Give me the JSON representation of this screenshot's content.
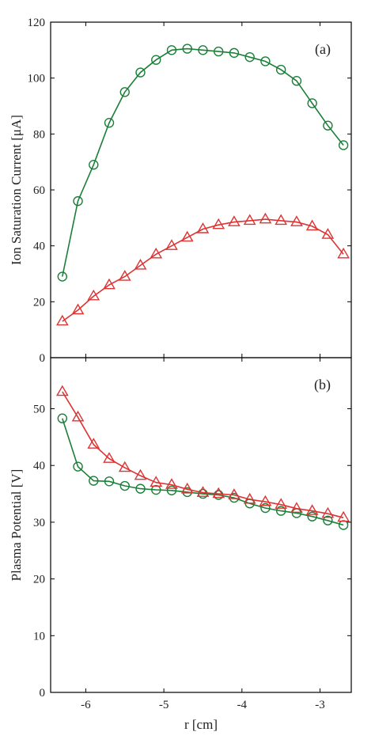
{
  "chart_data": [
    {
      "type": "line",
      "panel_label": "(a)",
      "ylabel": "Ion Saturation Current [μA]",
      "xlabel": "",
      "xlim": [
        -6.45,
        -2.6
      ],
      "ylim": [
        0,
        120
      ],
      "xticks": [
        -6,
        -5,
        -4,
        -3
      ],
      "xtick_labels": [
        "",
        "",
        "",
        ""
      ],
      "yticks": [
        0,
        20,
        40,
        60,
        80,
        100,
        120
      ],
      "ytick_labels": [
        "0",
        "20",
        "40",
        "60",
        "80",
        "100",
        "120"
      ],
      "grid": false,
      "legend": "none",
      "series": [
        {
          "color": "#1a7f37",
          "marker": "circle",
          "x": [
            -6.3,
            -6.1,
            -5.9,
            -5.7,
            -5.5,
            -5.3,
            -5.1,
            -4.9,
            -4.7,
            -4.5,
            -4.3,
            -4.1,
            -3.9,
            -3.7,
            -3.5,
            -3.3,
            -3.1,
            -2.9,
            -2.7
          ],
          "y": [
            29,
            56,
            69,
            84,
            95,
            102,
            106.5,
            110,
            110.5,
            110,
            109.5,
            109,
            107.5,
            106,
            103,
            99,
            91,
            83,
            76
          ]
        },
        {
          "color": "#dd3333",
          "marker": "triangle",
          "x": [
            -6.3,
            -6.1,
            -5.9,
            -5.7,
            -5.5,
            -5.3,
            -5.1,
            -4.9,
            -4.7,
            -4.5,
            -4.3,
            -4.1,
            -3.9,
            -3.7,
            -3.5,
            -3.3,
            -3.1,
            -2.9,
            -2.7
          ],
          "y": [
            13,
            17,
            22,
            26,
            29,
            33,
            37,
            40,
            43,
            46,
            47.5,
            48.5,
            49,
            49.5,
            49,
            48.5,
            47,
            44,
            37
          ]
        }
      ]
    },
    {
      "type": "line",
      "panel_label": "(b)",
      "ylabel": "Plasma Potential [V]",
      "xlabel": "r [cm]",
      "xlim": [
        -6.45,
        -2.6
      ],
      "ylim": [
        0,
        59
      ],
      "xticks": [
        -6,
        -5,
        -4,
        -3
      ],
      "xtick_labels": [
        "-6",
        "-5",
        "-4",
        "-3"
      ],
      "yticks": [
        0,
        10,
        20,
        30,
        40,
        50
      ],
      "ytick_labels": [
        "0",
        "10",
        "20",
        "30",
        "40",
        "50"
      ],
      "grid": false,
      "legend": "none",
      "series": [
        {
          "color": "#1a7f37",
          "marker": "circle",
          "x": [
            -6.3,
            -6.1,
            -5.9,
            -5.7,
            -5.5,
            -5.3,
            -5.1,
            -4.9,
            -4.7,
            -4.5,
            -4.3,
            -4.1,
            -3.9,
            -3.7,
            -3.5,
            -3.3,
            -3.1,
            -2.9,
            -2.7
          ],
          "y": [
            48.3,
            39.8,
            37.3,
            37.2,
            36.4,
            35.9,
            35.7,
            35.6,
            35.3,
            35,
            34.8,
            34.3,
            33.3,
            32.5,
            32,
            31.6,
            31,
            30.3,
            29.5
          ]
        },
        {
          "color": "#dd3333",
          "marker": "triangle",
          "x": [
            -6.3,
            -6.1,
            -5.9,
            -5.7,
            -5.5,
            -5.3,
            -5.1,
            -4.9,
            -4.7,
            -4.5,
            -4.3,
            -4.1,
            -3.9,
            -3.7,
            -3.5,
            -3.3,
            -3.1,
            -2.9,
            -2.7
          ],
          "y": [
            53,
            48.5,
            43.7,
            41.2,
            39.6,
            38.2,
            37,
            36.6,
            35.8,
            35.2,
            35,
            34.8,
            34,
            33.6,
            33.1,
            32.4,
            32,
            31.5,
            30.8
          ]
        }
      ]
    }
  ]
}
